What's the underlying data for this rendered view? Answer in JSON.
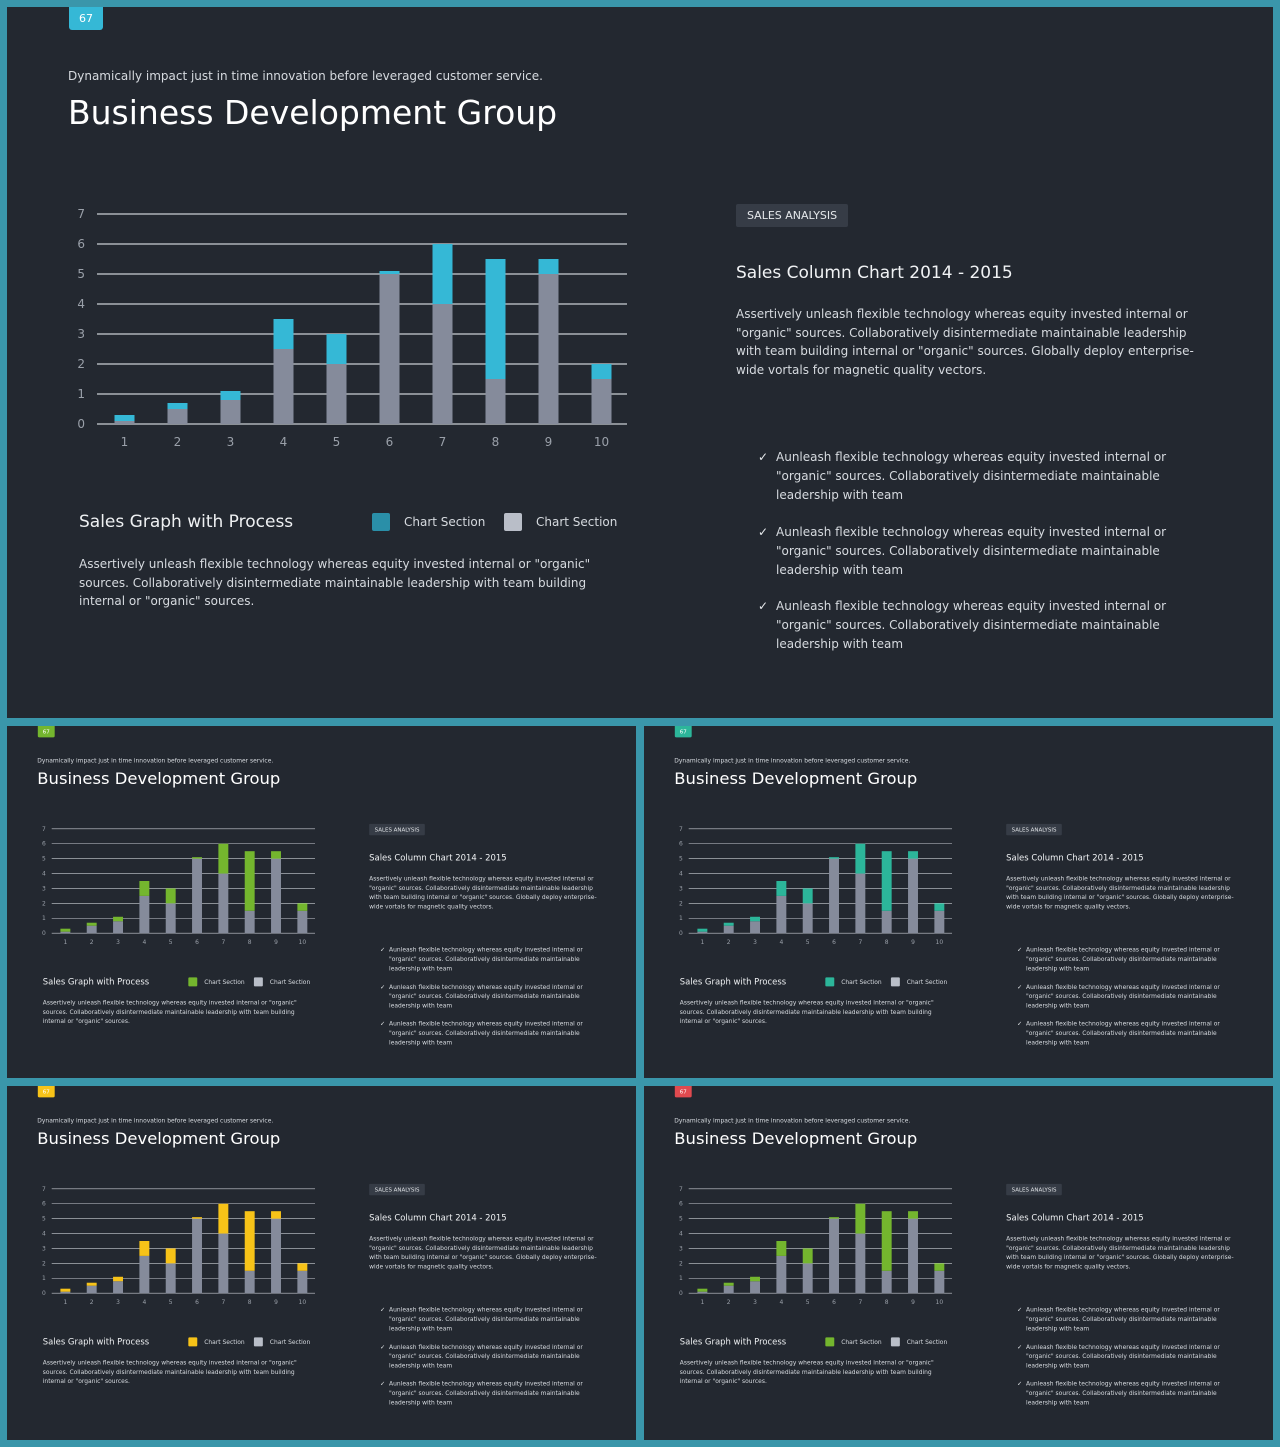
{
  "slide": {
    "page_number": "67",
    "subtitle": "Dynamically impact just in time innovation  before leveraged customer service.",
    "title": "Business Development Group",
    "graph_title": "Sales Graph with Process",
    "legend": [
      "Chart Section",
      "Chart Section"
    ],
    "left_paragraph": "Assertively unleash flexible technology whereas equity invested internal or \"organic\" sources. Collaboratively disintermediate maintainable leadership with team building internal or \"organic\" sources.",
    "tag": "SALES ANALYSIS",
    "right_title": "Sales Column  Chart 2014 - 2015",
    "right_paragraph": "Assertively unleash flexible technology whereas equity invested internal or \"organic\" sources. Collaboratively disintermediate maintainable leadership with team building internal or \"organic\" sources. Globally deploy enterprise-wide vortals for magnetic quality vectors.",
    "bullets": [
      "Aunleash flexible technology whereas equity invested internal or \"organic\" sources. Collaboratively disintermediate maintainable leadership with team",
      "Aunleash flexible technology whereas equity invested internal or \"organic\" sources. Collaboratively disintermediate maintainable leadership with team",
      "Aunleash flexible technology whereas equity invested internal or \"organic\" sources. Collaboratively disintermediate maintainable leadership with team"
    ]
  },
  "themes": {
    "blue": "#35b8d6",
    "green": "#74b62e",
    "teal": "#2cb69a",
    "yellow": "#f7c318",
    "red": "#e04a4f"
  },
  "legend_swatch_colors": {
    "blue": "#2a8fa8",
    "green": "#74b62e",
    "teal": "#2cb69a",
    "yellow": "#f7c318",
    "red": "#74b62e"
  },
  "variants": [
    {
      "theme": "blue",
      "accent": "#35b8d6"
    },
    {
      "theme": "green",
      "accent": "#74b62e"
    },
    {
      "theme": "teal",
      "accent": "#2cb69a"
    },
    {
      "theme": "yellow",
      "accent": "#f7c318"
    },
    {
      "theme": "red",
      "accent": "#74b62e"
    }
  ],
  "chart_data": {
    "type": "bar",
    "stacked": true,
    "categories": [
      "1",
      "2",
      "3",
      "4",
      "5",
      "6",
      "7",
      "8",
      "9",
      "10"
    ],
    "series": [
      {
        "name": "Chart Section",
        "color": "#858b9b",
        "values": [
          0.1,
          0.5,
          0.8,
          2.5,
          2.0,
          5.0,
          4.0,
          1.5,
          5.0,
          1.5
        ]
      },
      {
        "name": "Chart Section",
        "color": "accent",
        "values": [
          0.2,
          0.2,
          0.3,
          1.0,
          1.0,
          0.1,
          2.0,
          4.0,
          0.5,
          0.5
        ]
      }
    ],
    "ylim": [
      0,
      7
    ],
    "yticks": [
      0,
      1,
      2,
      3,
      4,
      5,
      6,
      7
    ],
    "grid": true
  }
}
